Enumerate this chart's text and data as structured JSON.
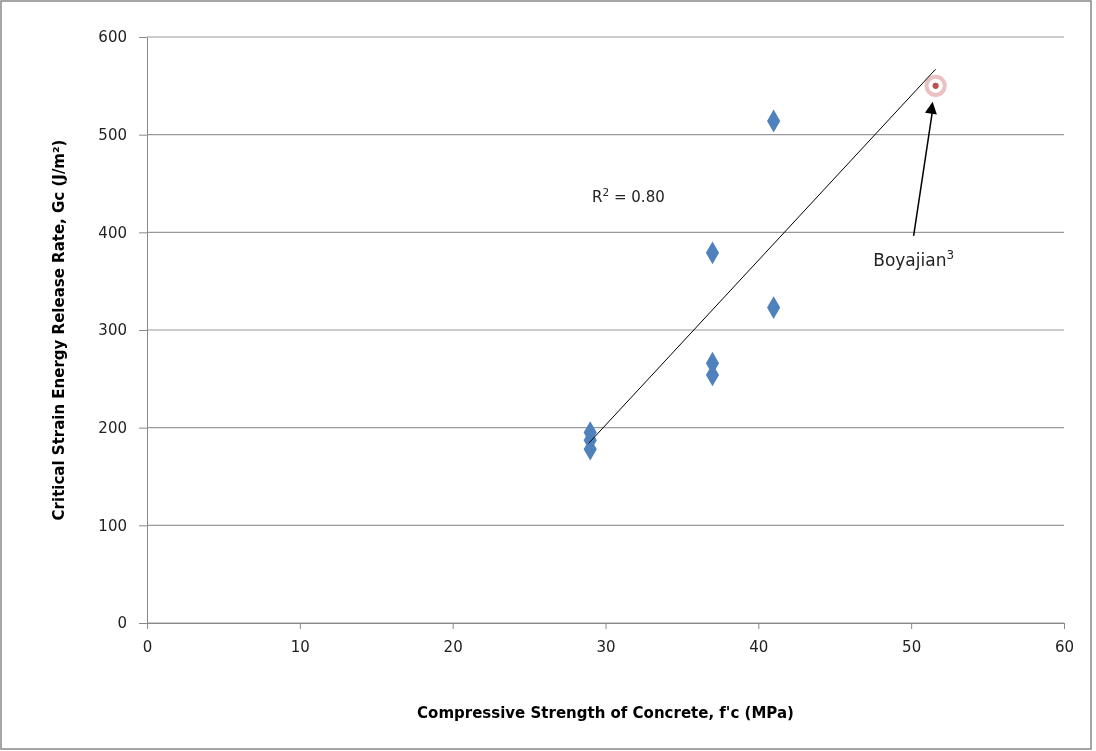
{
  "chart_data": {
    "type": "scatter",
    "xlabel": "Compressive Strength of Concrete, f'c (MPa)",
    "ylabel": "Critical Strain Energy Release Rate, Gc (J/m²)",
    "xlim": [
      0,
      60
    ],
    "xticks": [
      0,
      10,
      20,
      30,
      40,
      50,
      60
    ],
    "ylim": [
      0,
      600
    ],
    "yticks": [
      0,
      100,
      200,
      300,
      400,
      500,
      600
    ],
    "grid": "y",
    "series": [
      {
        "marker": "diamond",
        "color": "#4f81bd",
        "x": [
          29,
          29,
          29,
          37,
          37,
          37,
          41,
          41
        ],
        "values": [
          195,
          187,
          178,
          379,
          266,
          254,
          514,
          323
        ]
      },
      {
        "marker": "circle",
        "color": "#c0504d",
        "x": [
          51.6
        ],
        "values": [
          550
        ]
      },
      {
        "type": "line",
        "marker": "none",
        "color": "#000000",
        "x": [
          28.9,
          51.6
        ],
        "values": [
          184,
          567
        ]
      }
    ],
    "annotations": [
      "R$^{2}$ = 0.80",
      "Boyajian$^{3}$"
    ]
  }
}
